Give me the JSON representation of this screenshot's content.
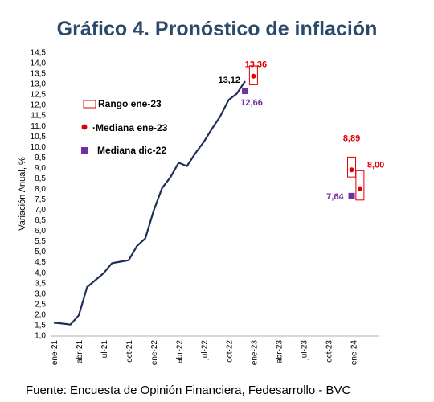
{
  "chart_data": {
    "type": "line",
    "title": "Gráfico 4. Pronóstico de inflación",
    "ylabel": "Variación Anual, %",
    "xlabel": "",
    "ylim": [
      1.0,
      14.5
    ],
    "ytick_step": 0.5,
    "x_tick_labels": [
      "ene-21",
      "abr-21",
      "jul-21",
      "oct-21",
      "ene-22",
      "abr-22",
      "jul-22",
      "oct-22",
      "ene-23",
      "abr-23",
      "jul-23",
      "oct-23",
      "ene-24"
    ],
    "series": [
      {
        "type": "line",
        "color": "#1f2f57",
        "x": [
          0,
          1,
          2,
          3,
          4,
          5,
          6,
          7,
          8,
          9,
          10,
          11,
          12,
          13,
          14,
          15,
          16,
          17,
          18,
          19,
          20,
          21,
          22,
          23
        ],
        "values": [
          1.6,
          1.56,
          1.51,
          1.95,
          3.3,
          3.63,
          3.97,
          4.44,
          4.51,
          4.58,
          5.26,
          5.62,
          6.94,
          8.01,
          8.53,
          9.23,
          9.07,
          9.67,
          10.21,
          10.84,
          11.44,
          12.22,
          12.53,
          13.12
        ]
      }
    ],
    "annotations": {
      "last_value": {
        "x": 23,
        "value": 13.12,
        "text": "13,12"
      },
      "mediana_dic22": {
        "x": 23,
        "value": 12.66,
        "text": "12,66",
        "color": "#7030a0"
      },
      "rango_ene23": {
        "x": 24,
        "low": 12.95,
        "high": 13.85,
        "median": 13.36,
        "text": "13,36",
        "color": "#e00000"
      },
      "rango_ene24_a": {
        "x": 35.8,
        "low": 8.55,
        "high": 9.5,
        "median": 8.89,
        "text": "8,89",
        "color": "#e00000"
      },
      "rango_ene24_b": {
        "x": 36.8,
        "low": 7.45,
        "high": 8.85,
        "median": 8.0,
        "text": "8,00",
        "color": "#e00000"
      },
      "mediana_dic22_future": {
        "x": 35.8,
        "value": 7.64,
        "text": "7,64",
        "color": "#7030a0"
      }
    },
    "legend": {
      "position": "left",
      "items": [
        {
          "label": "Rango ene-23",
          "marker": "rect-outline",
          "color": "#e00000"
        },
        {
          "label": "·Mediana ene-23",
          "marker": "circle",
          "color": "#e00000"
        },
        {
          "label": "Mediana dic-22",
          "marker": "square",
          "color": "#7030a0"
        }
      ]
    }
  },
  "source": "Fuente: Encuesta de Opinión Financiera, Fedesarrollo - BVC"
}
